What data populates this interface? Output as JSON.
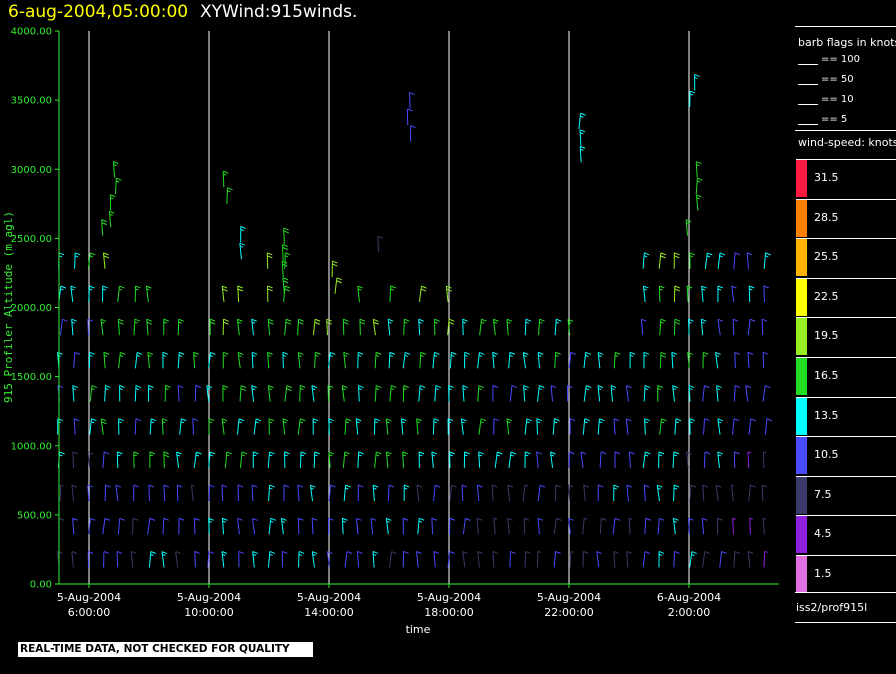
{
  "header": {
    "datetime": "6-aug-2004,05:00:00",
    "description": "XYWind:915winds."
  },
  "chart_data": {
    "type": "scatter",
    "title": "6-aug-2004,05:00:00  XYWind:915winds.",
    "xlabel": "time",
    "ylabel": "915 Profiler Altitude (m agl)",
    "x_ticks": [
      {
        "date": "5-Aug-2004",
        "time": "6:00:00"
      },
      {
        "date": "5-Aug-2004",
        "time": "10:00:00"
      },
      {
        "date": "5-Aug-2004",
        "time": "14:00:00"
      },
      {
        "date": "5-Aug-2004",
        "time": "18:00:00"
      },
      {
        "date": "5-Aug-2004",
        "time": "22:00:00"
      },
      {
        "date": "6-Aug-2004",
        "time": "2:00:00"
      }
    ],
    "xlim": [
      "5-Aug-2004 5:00:00",
      "6-Aug-2004 5:00:00"
    ],
    "ylim": [
      0,
      4000
    ],
    "y_ticks": [
      "0.00",
      "500.00",
      "1000.00",
      "1500.00",
      "2000.00",
      "2500.00",
      "3000.00",
      "3500.00",
      "4000.00"
    ],
    "grid": "vertical lines at x ticks",
    "profile_interval_minutes": 30,
    "range_gate_m": 60,
    "series": [
      {
        "hour": 5.0,
        "top": 2400,
        "speed": 13
      },
      {
        "hour": 5.5,
        "top": 2450,
        "speed": 12
      },
      {
        "hour": 6.0,
        "top": 2500,
        "speed": 14
      },
      {
        "hour": 6.5,
        "top": 2700,
        "speed": 16
      },
      {
        "hour": 7.0,
        "top": 2050,
        "speed": 15
      },
      {
        "hour": 7.5,
        "top": 2050,
        "speed": 14
      },
      {
        "hour": 8.0,
        "top": 2050,
        "speed": 15
      },
      {
        "hour": 8.5,
        "top": 2000,
        "speed": 16
      },
      {
        "hour": 9.0,
        "top": 1800,
        "speed": 14
      },
      {
        "hour": 9.5,
        "top": 1750,
        "speed": 13
      },
      {
        "hour": 10.0,
        "top": 2000,
        "speed": 15
      },
      {
        "hour": 10.5,
        "top": 2050,
        "speed": 17
      },
      {
        "hour": 11.0,
        "top": 2050,
        "speed": 16
      },
      {
        "hour": 11.5,
        "top": 2000,
        "speed": 15
      },
      {
        "hour": 12.0,
        "top": 2500,
        "speed": 17
      },
      {
        "hour": 12.5,
        "top": 2300,
        "speed": 16
      },
      {
        "hour": 13.0,
        "top": 2000,
        "speed": 17
      },
      {
        "hour": 13.5,
        "top": 2000,
        "speed": 16
      },
      {
        "hour": 14.0,
        "top": 2000,
        "speed": 15
      },
      {
        "hour": 14.5,
        "top": 2000,
        "speed": 16
      },
      {
        "hour": 15.0,
        "top": 2050,
        "speed": 15
      },
      {
        "hour": 15.5,
        "top": 2000,
        "speed": 16
      },
      {
        "hour": 16.0,
        "top": 2050,
        "speed": 15
      },
      {
        "hour": 16.5,
        "top": 2000,
        "speed": 16
      },
      {
        "hour": 17.0,
        "top": 2050,
        "speed": 15
      },
      {
        "hour": 17.5,
        "top": 2000,
        "speed": 14
      },
      {
        "hour": 18.0,
        "top": 2050,
        "speed": 15
      },
      {
        "hour": 18.5,
        "top": 2000,
        "speed": 14
      },
      {
        "hour": 19.0,
        "top": 1950,
        "speed": 14
      },
      {
        "hour": 19.5,
        "top": 2000,
        "speed": 13
      },
      {
        "hour": 20.0,
        "top": 1950,
        "speed": 14
      },
      {
        "hour": 20.5,
        "top": 1900,
        "speed": 13
      },
      {
        "hour": 21.0,
        "top": 1900,
        "speed": 13
      },
      {
        "hour": 21.5,
        "top": 1850,
        "speed": 13
      },
      {
        "hour": 22.0,
        "top": 1800,
        "speed": 12
      },
      {
        "hour": 22.5,
        "top": 1750,
        "speed": 13
      },
      {
        "hour": 23.0,
        "top": 1700,
        "speed": 12
      },
      {
        "hour": 23.5,
        "top": 1600,
        "speed": 13
      },
      {
        "hour": 24.0,
        "top": 1700,
        "speed": 12
      },
      {
        "hour": 24.5,
        "top": 2300,
        "speed": 14
      },
      {
        "hour": 25.0,
        "top": 2450,
        "speed": 17
      },
      {
        "hour": 25.5,
        "top": 2500,
        "speed": 16
      },
      {
        "hour": 26.0,
        "top": 2550,
        "speed": 15
      },
      {
        "hour": 26.5,
        "top": 2450,
        "speed": 14
      },
      {
        "hour": 27.0,
        "top": 2400,
        "speed": 12
      },
      {
        "hour": 27.5,
        "top": 2350,
        "speed": 11
      },
      {
        "hour": 28.0,
        "top": 2450,
        "speed": 11
      },
      {
        "hour": 28.5,
        "top": 2450,
        "speed": 11
      }
    ],
    "upper_level_clusters": [
      {
        "hour": 6.8,
        "bottom": 2580,
        "top": 3020,
        "speed": 17
      },
      {
        "hour": 10.5,
        "bottom": 2750,
        "top": 2950,
        "speed": 17
      },
      {
        "hour": 11.1,
        "bottom": 2350,
        "top": 2500,
        "speed": 14
      },
      {
        "hour": 12.5,
        "bottom": 2100,
        "top": 2550,
        "speed": 18
      },
      {
        "hour": 14.1,
        "bottom": 2100,
        "top": 2250,
        "speed": 20
      },
      {
        "hour": 15.6,
        "bottom": 2400,
        "top": 2500,
        "speed": 8
      },
      {
        "hour": 16.7,
        "bottom": 3200,
        "top": 3500,
        "speed": 12
      },
      {
        "hour": 22.4,
        "bottom": 3050,
        "top": 3300,
        "speed": 14
      },
      {
        "hour": 26.1,
        "bottom": 3450,
        "top": 3600,
        "speed": 13
      },
      {
        "hour": 26.2,
        "bottom": 2700,
        "top": 3020,
        "speed": 17
      }
    ]
  },
  "legend": {
    "barb_title": "barb flags in knots",
    "barb_items": [
      "== 100",
      "== 50",
      "== 10",
      "== 5"
    ],
    "speed_title": "wind-speed: knots",
    "speed_ranges": [
      {
        "label": "31.5",
        "color": "#ff1a40"
      },
      {
        "label": "28.5",
        "color": "#ff8000"
      },
      {
        "label": "25.5",
        "color": "#ffb300"
      },
      {
        "label": "22.5",
        "color": "#ffff00"
      },
      {
        "label": "19.5",
        "color": "#99ee22"
      },
      {
        "label": "16.5",
        "color": "#22dd22"
      },
      {
        "label": "13.5",
        "color": "#00ffff"
      },
      {
        "label": "10.5",
        "color": "#4a4aff"
      },
      {
        "label": "7.5",
        "color": "#3a3a6a"
      },
      {
        "label": "4.5",
        "color": "#9020e0"
      },
      {
        "label": "1.5",
        "color": "#e070e0"
      }
    ],
    "station": "iss2/prof915l"
  },
  "footer": {
    "quality_note": "REAL-TIME DATA, NOT CHECKED FOR QUALITY"
  },
  "colors": {
    "axis": "#33ee33",
    "background": "#000000",
    "gridline": "#ffffff",
    "title_date": "#ffff00"
  }
}
